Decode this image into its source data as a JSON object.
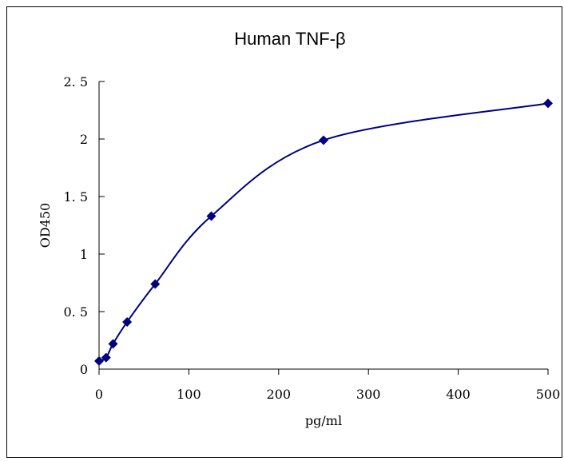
{
  "chart_data": {
    "type": "scatter",
    "title": "Human TNF-β",
    "xlabel": "pg/ml",
    "ylabel": "OD450",
    "xlim": [
      0,
      500
    ],
    "ylim": [
      0,
      2.5
    ],
    "x_ticks": [
      0,
      100,
      200,
      300,
      400,
      500
    ],
    "y_ticks": [
      0,
      0.5,
      1,
      1.5,
      2,
      2.5
    ],
    "x_tick_labels": [
      "0",
      "100",
      "200",
      "300",
      "400",
      "500"
    ],
    "y_tick_labels": [
      "0",
      "0. 5",
      "1",
      "1. 5",
      "2",
      "2. 5"
    ],
    "grid": false,
    "legend": "none",
    "marker": "diamond",
    "fit_line": "smooth",
    "color": "#000080",
    "series": [
      {
        "x": [
          0,
          7.8,
          15.6,
          31.25,
          62.5,
          125,
          250,
          500
        ],
        "y": [
          0.07,
          0.1,
          0.22,
          0.41,
          0.74,
          1.33,
          1.99,
          2.31
        ]
      }
    ]
  }
}
